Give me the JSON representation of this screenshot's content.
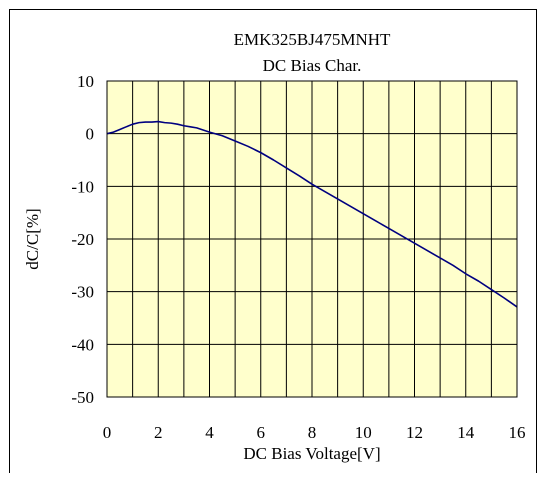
{
  "chart_data": {
    "type": "line",
    "title": "EMK325BJ475MNHT",
    "subtitle": "DC Bias Char.",
    "xlabel": "DC Bias Voltage[V]",
    "ylabel": "dC/C[%]",
    "xlim": [
      0,
      16
    ],
    "ylim": [
      -50,
      10
    ],
    "xticks": [
      "0",
      "2",
      "4",
      "6",
      "8",
      "10",
      "12",
      "14",
      "16"
    ],
    "yticks": [
      "10",
      "0",
      "-10",
      "-20",
      "-30",
      "-40",
      "-50"
    ],
    "x_minor_grid_step": 1,
    "y_grid_step": 10,
    "grid": true,
    "plot_background": "#ffffcc",
    "line_color": "#000080",
    "series": [
      {
        "x": [
          0,
          0.25,
          0.5,
          0.75,
          1.0,
          1.25,
          1.5,
          1.75,
          2.0,
          2.25,
          2.5,
          2.75,
          3.0,
          3.25,
          3.5,
          3.75,
          4.0,
          4.5,
          5.0,
          5.5,
          6.0,
          6.5,
          7.0,
          7.5,
          8.0,
          8.5,
          9.0,
          9.5,
          10.0,
          10.5,
          11.0,
          11.5,
          12.0,
          12.5,
          13.0,
          13.5,
          14.0,
          14.5,
          15.0,
          15.5,
          16.0
        ],
        "values": [
          0.0,
          0.3,
          0.8,
          1.3,
          1.8,
          2.1,
          2.2,
          2.2,
          2.3,
          2.1,
          2.0,
          1.8,
          1.5,
          1.3,
          1.1,
          0.7,
          0.3,
          -0.4,
          -1.4,
          -2.4,
          -3.6,
          -5.0,
          -6.5,
          -8.0,
          -9.6,
          -11.0,
          -12.4,
          -13.8,
          -15.2,
          -16.6,
          -18.0,
          -19.4,
          -20.8,
          -22.2,
          -23.6,
          -25.0,
          -26.6,
          -28.0,
          -29.6,
          -31.2,
          -32.9
        ]
      }
    ]
  }
}
